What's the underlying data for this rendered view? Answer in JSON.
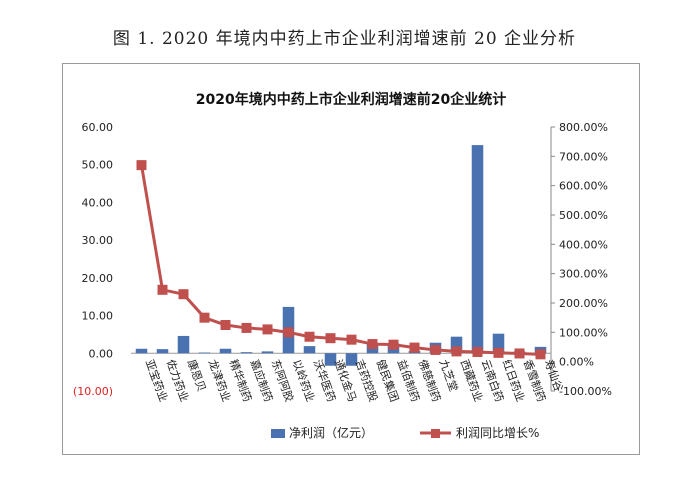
{
  "figure_caption": "图 1. 2020 年境内中药上市企业利润增速前 20 企业分析",
  "chart_data": {
    "type": "bar+line",
    "title": "2020年境内中药上市企业利润增速前20企业统计",
    "categories": [
      "亚宝药业",
      "佐力药业",
      "康恩贝",
      "龙津药业",
      "精华制药",
      "嘉应制药",
      "东阿阿胶",
      "以岭药业",
      "沃华医药",
      "通化金马",
      "吉药控股",
      "健民集团",
      "益佰制药",
      "佛慈制药",
      "九芝堂",
      "西藏药业",
      "云南白药",
      "红日药业",
      "香雪制药",
      "寿仙谷"
    ],
    "series": [
      {
        "name": "净利润（亿元）",
        "type": "bar",
        "axis": "left",
        "color": "#4a72b0",
        "values": [
          1.2,
          1.1,
          4.6,
          0.2,
          1.2,
          0.3,
          0.5,
          12.3,
          1.9,
          -3.3,
          -3.3,
          2.5,
          2.6,
          0.6,
          2.8,
          4.4,
          55.2,
          5.2,
          0.5,
          1.7
        ]
      },
      {
        "name": "利润同比增长%",
        "type": "line",
        "axis": "right",
        "color": "#c0504d",
        "values": [
          670,
          245,
          230,
          150,
          125,
          115,
          110,
          100,
          85,
          80,
          75,
          60,
          58,
          48,
          40,
          35,
          33,
          30,
          28,
          25
        ]
      }
    ],
    "y_left": {
      "min": -10,
      "max": 60,
      "step": 10,
      "ticks": [
        "(10.00)",
        "0.00",
        "10.00",
        "20.00",
        "30.00",
        "40.00",
        "50.00",
        "60.00"
      ]
    },
    "y_right": {
      "min": -100,
      "max": 800,
      "step": 100,
      "ticks": [
        "-100.00%",
        "0.00%",
        "100.00%",
        "200.00%",
        "300.00%",
        "400.00%",
        "500.00%",
        "600.00%",
        "700.00%",
        "800.00%"
      ]
    },
    "legend": {
      "position": "bottom",
      "items": [
        "净利润（亿元）",
        "利润同比增长%"
      ]
    },
    "grid": false
  }
}
